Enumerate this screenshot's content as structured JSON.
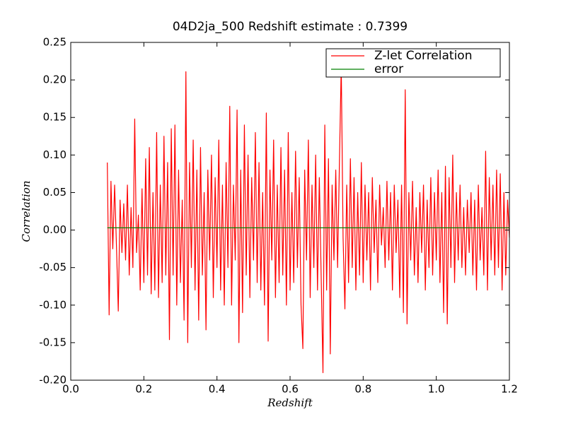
{
  "chart_data": {
    "type": "line",
    "title": "04D2ja_500 Redshift estimate : 0.7399",
    "xlabel": "Redshift",
    "ylabel": "Correlation",
    "xlim": [
      0,
      1.2
    ],
    "ylim": [
      -0.2,
      0.25
    ],
    "xticks": [
      {
        "value": 0,
        "label": "0.0"
      },
      0.2,
      0.4,
      0.6,
      0.8,
      {
        "value": 1,
        "label": "1.0"
      },
      1.2
    ],
    "yticks": [
      {
        "value": -0.2,
        "label": "-0.20"
      },
      -0.15,
      {
        "value": -0.1,
        "label": "-0.10"
      },
      -0.05,
      {
        "value": 0,
        "label": "0.00"
      },
      0.05,
      {
        "value": 0.1,
        "label": "0.10"
      },
      0.15,
      {
        "value": 0.2,
        "label": "0.20"
      },
      0.25
    ],
    "legend": "upper right",
    "marker": {
      "x": 0.7399,
      "y": 0.22,
      "color": "#000000"
    },
    "series": [
      {
        "name": "Z-let Correlation",
        "color": "#ff0000",
        "x": [
          0.1,
          0.105,
          0.11,
          0.115,
          0.12,
          0.125,
          0.13,
          0.135,
          0.14,
          0.145,
          0.15,
          0.155,
          0.16,
          0.165,
          0.17,
          0.175,
          0.18,
          0.185,
          0.19,
          0.195,
          0.2,
          0.205,
          0.21,
          0.215,
          0.22,
          0.225,
          0.23,
          0.235,
          0.24,
          0.245,
          0.25,
          0.255,
          0.26,
          0.265,
          0.27,
          0.275,
          0.28,
          0.285,
          0.29,
          0.295,
          0.3,
          0.305,
          0.31,
          0.315,
          0.32,
          0.325,
          0.33,
          0.335,
          0.34,
          0.345,
          0.35,
          0.355,
          0.36,
          0.365,
          0.37,
          0.375,
          0.38,
          0.385,
          0.39,
          0.395,
          0.4,
          0.405,
          0.41,
          0.415,
          0.42,
          0.425,
          0.43,
          0.435,
          0.44,
          0.445,
          0.45,
          0.455,
          0.46,
          0.465,
          0.47,
          0.475,
          0.48,
          0.485,
          0.49,
          0.495,
          0.5,
          0.505,
          0.51,
          0.515,
          0.52,
          0.525,
          0.53,
          0.535,
          0.54,
          0.545,
          0.55,
          0.555,
          0.56,
          0.565,
          0.57,
          0.575,
          0.58,
          0.585,
          0.59,
          0.595,
          0.6,
          0.605,
          0.61,
          0.615,
          0.62,
          0.625,
          0.63,
          0.635,
          0.64,
          0.645,
          0.65,
          0.655,
          0.66,
          0.665,
          0.67,
          0.675,
          0.68,
          0.685,
          0.69,
          0.695,
          0.7,
          0.705,
          0.71,
          0.715,
          0.72,
          0.725,
          0.73,
          0.735,
          0.74,
          0.745,
          0.75,
          0.755,
          0.76,
          0.765,
          0.77,
          0.775,
          0.78,
          0.785,
          0.79,
          0.795,
          0.8,
          0.805,
          0.81,
          0.815,
          0.82,
          0.825,
          0.83,
          0.835,
          0.84,
          0.845,
          0.85,
          0.855,
          0.86,
          0.865,
          0.87,
          0.875,
          0.88,
          0.885,
          0.89,
          0.895,
          0.9,
          0.905,
          0.91,
          0.915,
          0.92,
          0.925,
          0.93,
          0.935,
          0.94,
          0.945,
          0.95,
          0.955,
          0.96,
          0.965,
          0.97,
          0.975,
          0.98,
          0.985,
          0.99,
          0.995,
          1.0,
          1.005,
          1.01,
          1.015,
          1.02,
          1.025,
          1.03,
          1.035,
          1.04,
          1.045,
          1.05,
          1.055,
          1.06,
          1.065,
          1.07,
          1.075,
          1.08,
          1.085,
          1.09,
          1.095,
          1.1,
          1.105,
          1.11,
          1.115,
          1.12,
          1.125,
          1.13,
          1.135,
          1.14,
          1.145,
          1.15,
          1.155,
          1.16,
          1.165,
          1.17,
          1.175,
          1.18,
          1.185,
          1.19,
          1.195,
          1.2
        ],
        "values": [
          0.09,
          -0.113,
          0.065,
          -0.025,
          0.06,
          -0.02,
          -0.108,
          0.04,
          -0.03,
          0.035,
          -0.04,
          0.06,
          -0.06,
          0.03,
          -0.05,
          0.148,
          -0.03,
          0.02,
          -0.08,
          0.055,
          -0.07,
          0.095,
          -0.06,
          0.11,
          -0.085,
          0.05,
          -0.08,
          0.13,
          -0.09,
          0.06,
          -0.07,
          0.125,
          -0.06,
          0.09,
          -0.146,
          0.135,
          -0.06,
          0.14,
          -0.1,
          0.08,
          -0.07,
          0.04,
          -0.12,
          0.211,
          -0.15,
          0.09,
          -0.05,
          0.12,
          -0.08,
          0.08,
          -0.12,
          0.11,
          -0.06,
          0.05,
          -0.133,
          0.08,
          -0.04,
          0.1,
          -0.09,
          0.07,
          -0.05,
          0.12,
          -0.08,
          0.06,
          -0.1,
          0.09,
          -0.05,
          0.165,
          -0.1,
          0.06,
          -0.04,
          0.16,
          -0.15,
          0.08,
          -0.11,
          0.14,
          -0.06,
          0.1,
          -0.09,
          0.07,
          -0.04,
          0.13,
          -0.07,
          0.09,
          -0.08,
          0.05,
          -0.1,
          0.156,
          -0.148,
          0.08,
          -0.04,
          0.12,
          -0.09,
          0.06,
          -0.07,
          0.11,
          -0.06,
          0.08,
          -0.1,
          0.13,
          -0.08,
          0.05,
          -0.07,
          0.105,
          -0.05,
          0.07,
          -0.1,
          -0.158,
          0.08,
          -0.04,
          0.12,
          -0.09,
          0.06,
          -0.05,
          0.1,
          -0.08,
          0.07,
          -0.06,
          -0.19,
          0.14,
          -0.08,
          0.095,
          -0.165,
          0.06,
          -0.04,
          0.08,
          -0.05,
          0.09,
          0.22,
          -0.01,
          -0.105,
          0.06,
          -0.07,
          0.095,
          -0.05,
          0.07,
          -0.08,
          0.05,
          -0.06,
          0.09,
          -0.07,
          0.06,
          -0.04,
          0.05,
          -0.08,
          0.07,
          -0.03,
          0.04,
          -0.07,
          0.06,
          -0.02,
          0.03,
          -0.05,
          0.065,
          -0.04,
          0.05,
          -0.08,
          0.06,
          -0.03,
          0.04,
          -0.09,
          0.06,
          -0.11,
          0.187,
          -0.125,
          0.05,
          -0.04,
          0.065,
          -0.06,
          0.03,
          -0.07,
          0.05,
          -0.03,
          0.06,
          -0.08,
          0.04,
          -0.05,
          0.07,
          -0.06,
          0.05,
          -0.04,
          0.08,
          -0.07,
          0.05,
          -0.11,
          0.085,
          -0.125,
          0.07,
          -0.05,
          0.1,
          -0.07,
          0.05,
          -0.04,
          0.06,
          -0.05,
          0.03,
          -0.06,
          0.04,
          -0.03,
          0.05,
          -0.06,
          0.04,
          -0.08,
          0.06,
          -0.04,
          0.03,
          -0.06,
          0.105,
          -0.08,
          0.07,
          -0.04,
          0.06,
          -0.06,
          0.08,
          -0.05,
          0.075,
          -0.08,
          0.05,
          -0.06,
          0.04,
          -0.01
        ]
      },
      {
        "name": "error",
        "color": "#008000",
        "x": [
          0.1,
          1.2
        ],
        "values": [
          0.003,
          0.003
        ]
      }
    ]
  }
}
